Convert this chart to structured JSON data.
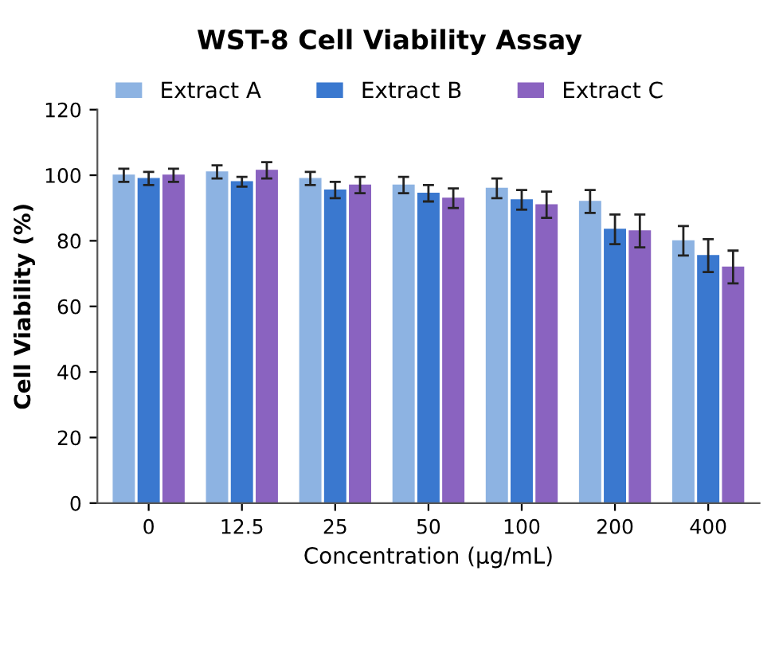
{
  "chart_data": {
    "type": "bar",
    "title": "WST-8 Cell Viability Assay",
    "xlabel": "Concentration (µg/mL)",
    "ylabel": "Cell Viability (%)",
    "categories": [
      "0",
      "12.5",
      "25",
      "50",
      "100",
      "200",
      "400"
    ],
    "series": [
      {
        "name": "Extract A",
        "color": "#8db3e2",
        "values": [
          100,
          101,
          99,
          97,
          96,
          92,
          80
        ],
        "errors": [
          2,
          2,
          2,
          2.5,
          3,
          3.5,
          4.5
        ]
      },
      {
        "name": "Extract B",
        "color": "#3a78cf",
        "values": [
          99,
          98,
          95.5,
          94.5,
          92.5,
          83.5,
          75.5
        ],
        "errors": [
          2,
          1.5,
          2.5,
          2.5,
          3,
          4.5,
          5
        ]
      },
      {
        "name": "Extract C",
        "color": "#8a63c0",
        "values": [
          100,
          101.5,
          97,
          93,
          91,
          83,
          72
        ],
        "errors": [
          2,
          2.5,
          2.5,
          3,
          4,
          5,
          5
        ]
      }
    ],
    "ylim": [
      0,
      120
    ],
    "yticks": [
      0,
      20,
      40,
      60,
      80,
      100,
      120
    ],
    "grid": false,
    "legend": "top"
  }
}
